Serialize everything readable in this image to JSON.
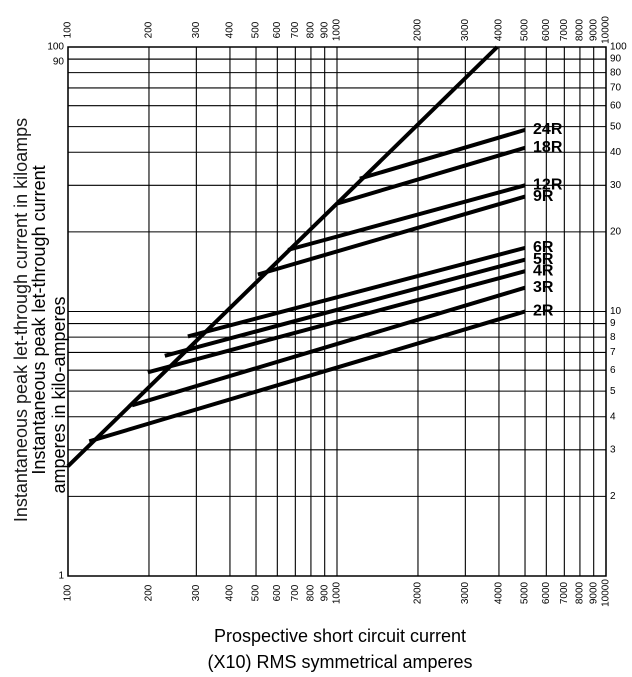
{
  "chart_data": {
    "type": "line",
    "xscale": "log",
    "yscale": "log",
    "grid": true,
    "xlabel": [
      "Prospective short circuit current",
      "(X10) RMS symmetrical amperes"
    ],
    "ylabel": [
      "Instantaneous peak let-through current",
      "amperes in kilo-amperes"
    ],
    "ylabel_behind": "Instantaneous peak let-through current in kiloamps",
    "xlim": [
      100,
      10000
    ],
    "xticks": [
      100,
      200,
      300,
      400,
      500,
      600,
      700,
      800,
      900,
      1000,
      2000,
      3000,
      4000,
      5000,
      6000,
      7000,
      8000,
      9000,
      10000
    ],
    "ylim": [
      1,
      100
    ],
    "yticks": [
      1,
      90,
      100
    ],
    "y2lim": [
      1,
      100
    ],
    "y2ticks": [
      2,
      3,
      4,
      5,
      6,
      7,
      8,
      9,
      10,
      20,
      30,
      40,
      50,
      60,
      70,
      80,
      90,
      100
    ],
    "series": [
      {
        "color": "#000000",
        "x": [
          100,
          3940
        ],
        "values": [
          2.6,
          100
        ]
      },
      {
        "name": "24R",
        "color": "#000000",
        "x": [
          1216,
          5000
        ],
        "values": [
          31.8,
          48.6
        ]
      },
      {
        "name": "18R",
        "color": "#000000",
        "x": [
          1000,
          5000
        ],
        "values": [
          25.6,
          41.6
        ]
      },
      {
        "name": "12R",
        "color": "#000000",
        "x": [
          658,
          5000
        ],
        "values": [
          17.1,
          30
        ]
      },
      {
        "name": "9R",
        "color": "#000000",
        "x": [
          508,
          5000
        ],
        "values": [
          13.8,
          27.2
        ]
      },
      {
        "name": "6R",
        "color": "#000000",
        "x": [
          279,
          5000
        ],
        "values": [
          8.05,
          17.4
        ]
      },
      {
        "name": "5R",
        "color": "#000000",
        "x": [
          229,
          5000
        ],
        "values": [
          6.8,
          15.7
        ]
      },
      {
        "name": "4R",
        "color": "#000000",
        "x": [
          198,
          5000
        ],
        "values": [
          5.89,
          14.2
        ]
      },
      {
        "name": "3R",
        "color": "#000000",
        "x": [
          173,
          5000
        ],
        "values": [
          4.42,
          12.3
        ]
      },
      {
        "name": "2R",
        "color": "#000000",
        "x": [
          120,
          5000
        ],
        "values": [
          3.23,
          10
        ]
      }
    ]
  }
}
